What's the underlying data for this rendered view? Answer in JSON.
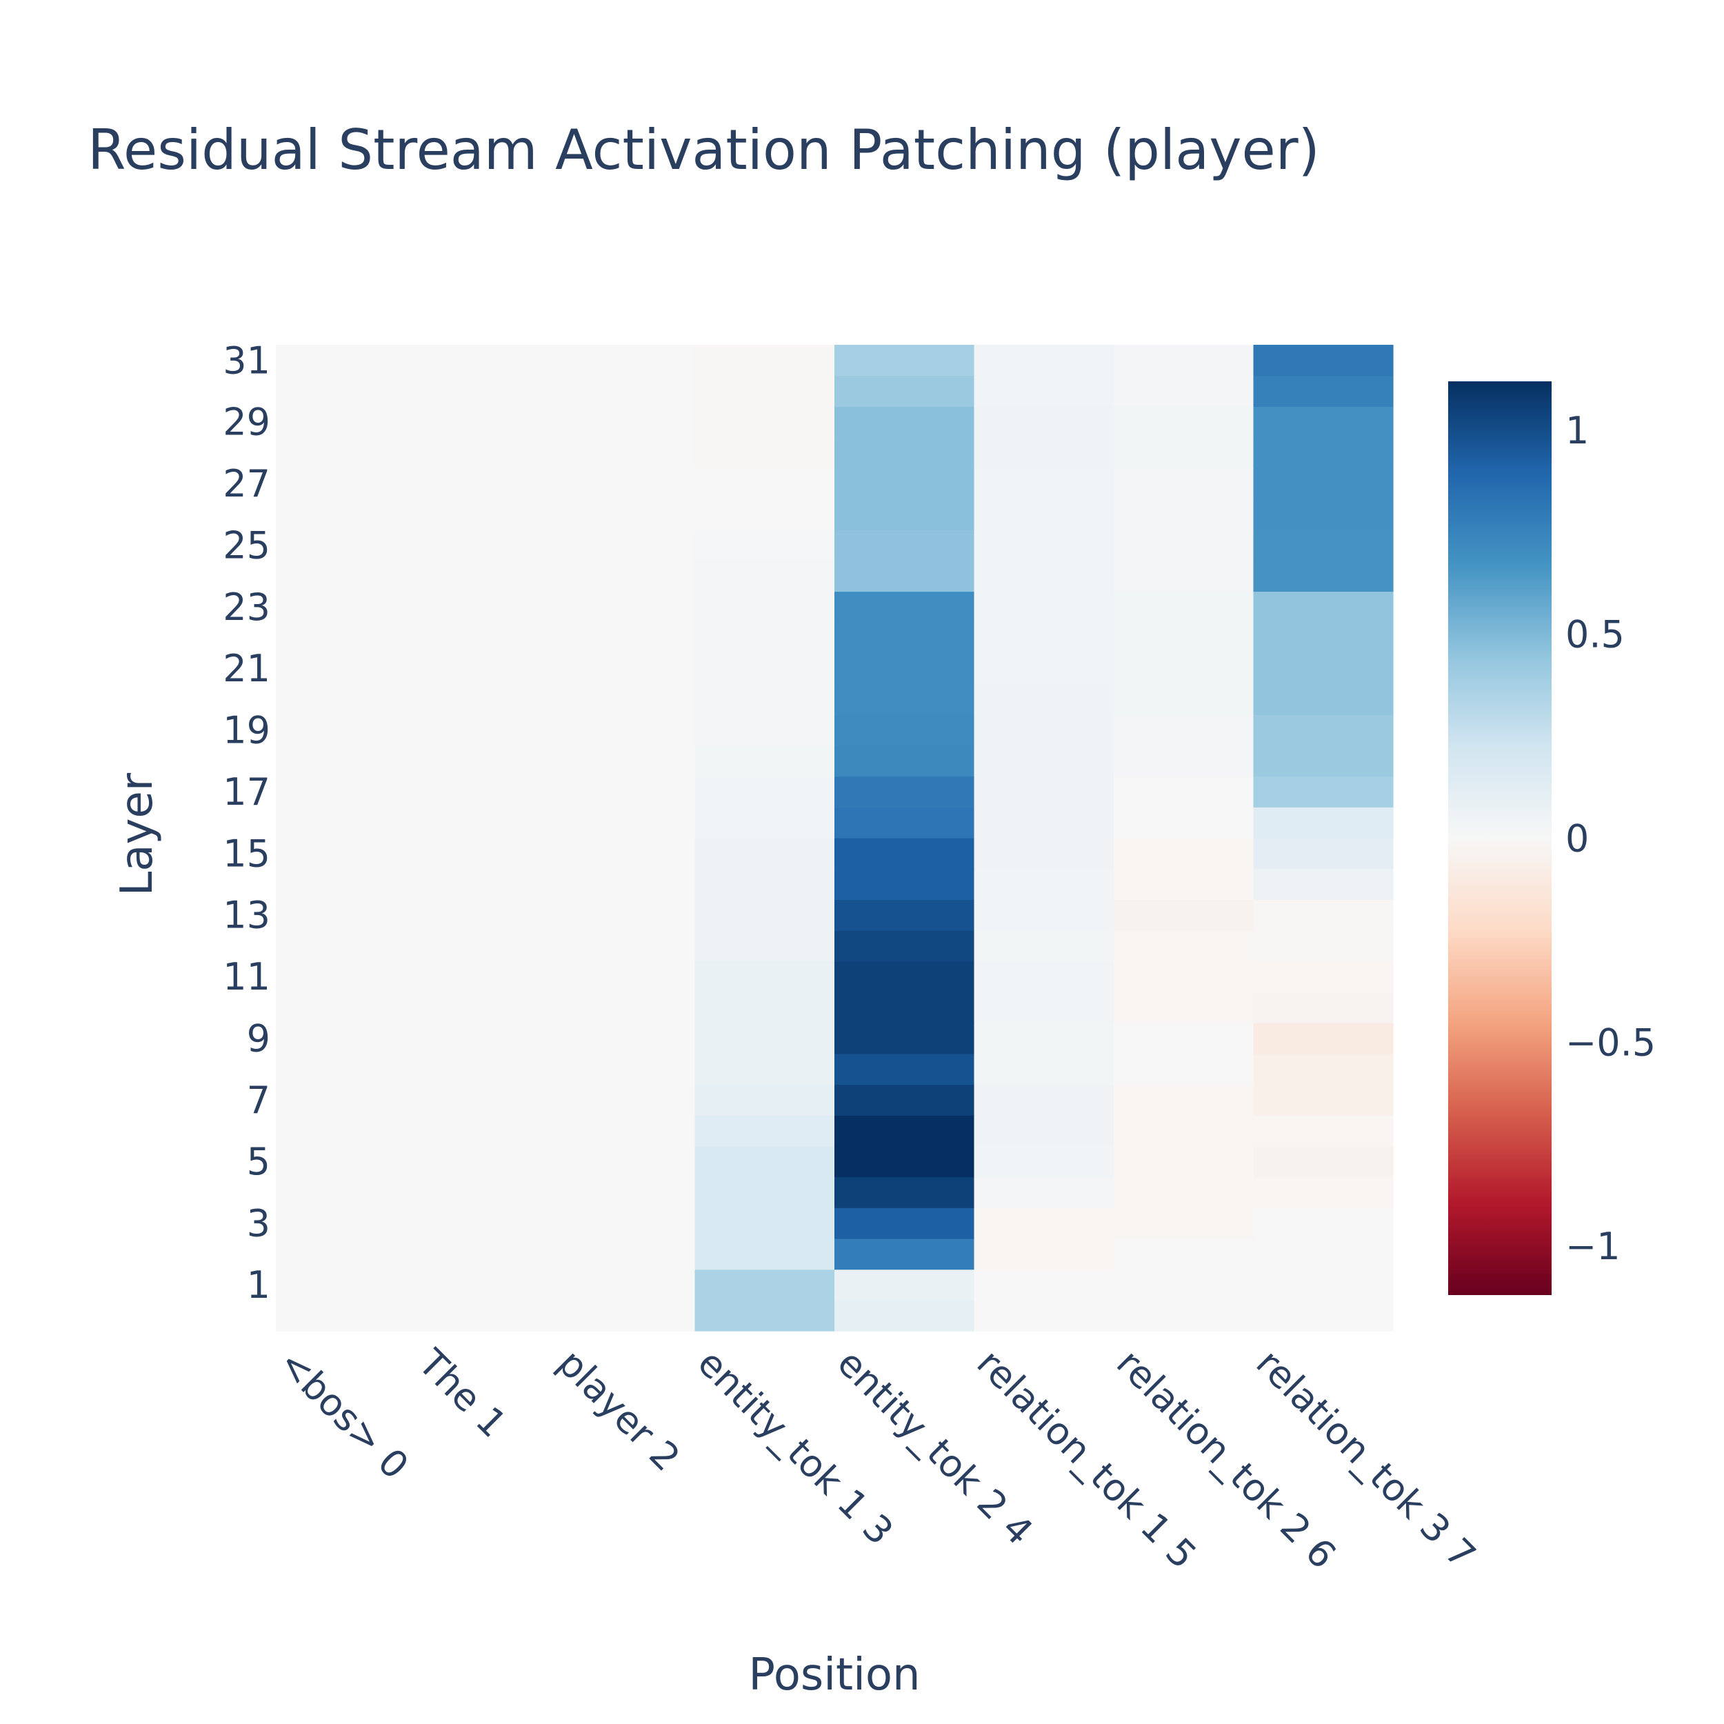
{
  "chart_data": {
    "type": "heatmap",
    "title": "Residual Stream Activation Patching (player)",
    "xlabel": "Position",
    "ylabel": "Layer",
    "x": [
      "<bos> 0",
      "The 1",
      "player 2",
      "entity_tok 1 3",
      "entity_tok 2 4",
      "relation_tok 1 5",
      "relation_tok 2 6",
      "relation_tok 3 7"
    ],
    "y": [
      0,
      1,
      2,
      3,
      4,
      5,
      6,
      7,
      8,
      9,
      10,
      11,
      12,
      13,
      14,
      15,
      16,
      17,
      18,
      19,
      20,
      21,
      22,
      23,
      24,
      25,
      26,
      27,
      28,
      29,
      30,
      31
    ],
    "y_tick_labels": [
      "1",
      "3",
      "5",
      "7",
      "9",
      "11",
      "13",
      "15",
      "17",
      "19",
      "21",
      "23",
      "25",
      "27",
      "29",
      "31"
    ],
    "y_tick_values": [
      1,
      3,
      5,
      7,
      9,
      11,
      13,
      15,
      17,
      19,
      21,
      23,
      25,
      27,
      29,
      31
    ],
    "zlim": [
      -1.12,
      1.12
    ],
    "colorscale": "RdBu",
    "colorbar_ticks": [
      1,
      0.5,
      0,
      -0.5,
      -1
    ],
    "colorbar_tick_labels": [
      "1",
      "0.5",
      "0",
      "−0.5",
      "−1"
    ],
    "z": [
      [
        0,
        0,
        0,
        0.36,
        0.1,
        0,
        0,
        0
      ],
      [
        0,
        0,
        0,
        0.36,
        0.08,
        0,
        0,
        0
      ],
      [
        0,
        0,
        0,
        0.18,
        0.78,
        -0.02,
        0,
        0
      ],
      [
        0,
        0,
        0,
        0.18,
        0.92,
        -0.02,
        -0.02,
        0
      ],
      [
        0,
        0,
        0,
        0.18,
        1.05,
        0.02,
        -0.02,
        -0.02
      ],
      [
        0,
        0,
        0,
        0.18,
        1.12,
        0.04,
        -0.02,
        -0.04
      ],
      [
        0,
        0,
        0,
        0.14,
        1.12,
        0.05,
        -0.02,
        -0.02
      ],
      [
        0,
        0,
        0,
        0.1,
        1.05,
        0.05,
        -0.02,
        -0.06
      ],
      [
        0,
        0,
        0,
        0.08,
        0.98,
        0.03,
        0,
        -0.06
      ],
      [
        0,
        0,
        0,
        0.08,
        1.05,
        0.03,
        0,
        -0.1
      ],
      [
        0,
        0,
        0,
        0.08,
        1.05,
        0.04,
        -0.02,
        -0.03
      ],
      [
        0,
        0,
        0,
        0.08,
        1.05,
        0.04,
        -0.02,
        -0.02
      ],
      [
        0,
        0,
        0,
        0.06,
        1.02,
        0.03,
        -0.02,
        -0.01
      ],
      [
        0,
        0,
        0,
        0.06,
        0.98,
        0.04,
        -0.04,
        -0.01
      ],
      [
        0,
        0,
        0,
        0.06,
        0.92,
        0.04,
        -0.02,
        0.06
      ],
      [
        0,
        0,
        0,
        0.06,
        0.92,
        0.05,
        -0.02,
        0.12
      ],
      [
        0,
        0,
        0,
        0.04,
        0.82,
        0.05,
        0,
        0.14
      ],
      [
        0,
        0,
        0,
        0.04,
        0.8,
        0.05,
        0,
        0.38
      ],
      [
        0,
        0,
        0,
        0.03,
        0.72,
        0.05,
        0.02,
        0.42
      ],
      [
        0,
        0,
        0,
        0.02,
        0.71,
        0.05,
        0.02,
        0.42
      ],
      [
        0,
        0,
        0,
        0.02,
        0.7,
        0.05,
        0.03,
        0.45
      ],
      [
        0,
        0,
        0,
        0.02,
        0.7,
        0.04,
        0.03,
        0.45
      ],
      [
        0,
        0,
        0,
        0.02,
        0.7,
        0.04,
        0.03,
        0.45
      ],
      [
        0,
        0,
        0,
        0.02,
        0.7,
        0.04,
        0.03,
        0.45
      ],
      [
        0,
        0,
        0,
        0.02,
        0.46,
        0.04,
        0.02,
        0.67
      ],
      [
        0,
        0,
        0,
        0.01,
        0.46,
        0.04,
        0.02,
        0.67
      ],
      [
        0,
        0,
        0,
        0,
        0.47,
        0.04,
        0.02,
        0.68
      ],
      [
        0,
        0,
        0,
        0,
        0.47,
        0.04,
        0.02,
        0.68
      ],
      [
        0,
        0,
        0,
        -0.01,
        0.47,
        0.05,
        0.03,
        0.68
      ],
      [
        0,
        0,
        0,
        -0.01,
        0.47,
        0.05,
        0.03,
        0.68
      ],
      [
        0,
        0,
        0,
        -0.01,
        0.42,
        0.04,
        0.02,
        0.76
      ],
      [
        0,
        0,
        0,
        -0.01,
        0.38,
        0.04,
        0.02,
        0.8
      ]
    ]
  }
}
